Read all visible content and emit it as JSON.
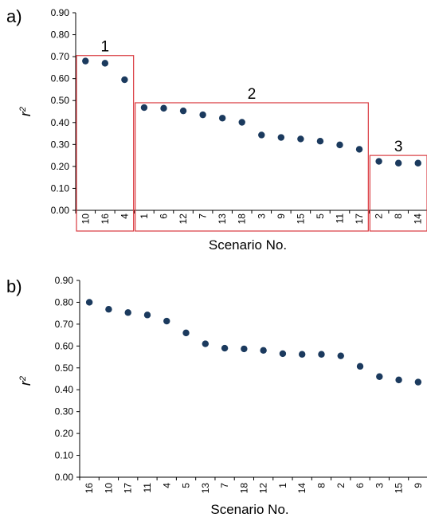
{
  "colors": {
    "marker": "#1b3a5e",
    "axis": "#000000",
    "group_box": "#d9393f"
  },
  "chart_data": [
    {
      "type": "scatter",
      "panel_label": "a)",
      "xlabel": "Scenario No.",
      "ylabel": "r",
      "ylabel_superscript": "2",
      "ylim": [
        0,
        0.9
      ],
      "yticks": [
        "0.00",
        "0.10",
        "0.20",
        "0.30",
        "0.40",
        "0.50",
        "0.60",
        "0.70",
        "0.80",
        "0.90"
      ],
      "grid": false,
      "categories": [
        "10",
        "16",
        "4",
        "1",
        "6",
        "12",
        "7",
        "13",
        "18",
        "3",
        "9",
        "15",
        "5",
        "11",
        "17",
        "2",
        "8",
        "14"
      ],
      "values": [
        0.68,
        0.67,
        0.595,
        0.468,
        0.465,
        0.453,
        0.435,
        0.42,
        0.401,
        0.343,
        0.332,
        0.325,
        0.315,
        0.298,
        0.278,
        0.223,
        0.215,
        0.215
      ],
      "groups": [
        {
          "label": "1",
          "first": 0,
          "last": 2,
          "top": 0.705
        },
        {
          "label": "2",
          "first": 3,
          "last": 14,
          "top": 0.49
        },
        {
          "label": "3",
          "first": 15,
          "last": 17,
          "top": 0.25
        }
      ]
    },
    {
      "type": "scatter",
      "panel_label": "b)",
      "xlabel": "Scenario No.",
      "ylabel": "r",
      "ylabel_superscript": "2",
      "ylim": [
        0,
        0.9
      ],
      "yticks": [
        "0.00",
        "0.10",
        "0.20",
        "0.30",
        "0.40",
        "0.50",
        "0.60",
        "0.70",
        "0.80",
        "0.90"
      ],
      "grid": false,
      "categories": [
        "16",
        "10",
        "17",
        "11",
        "4",
        "5",
        "13",
        "7",
        "18",
        "12",
        "1",
        "14",
        "8",
        "2",
        "6",
        "3",
        "15",
        "9"
      ],
      "values": [
        0.8,
        0.768,
        0.753,
        0.742,
        0.714,
        0.66,
        0.61,
        0.59,
        0.587,
        0.58,
        0.565,
        0.562,
        0.562,
        0.555,
        0.507,
        0.46,
        0.445,
        0.435
      ]
    }
  ]
}
